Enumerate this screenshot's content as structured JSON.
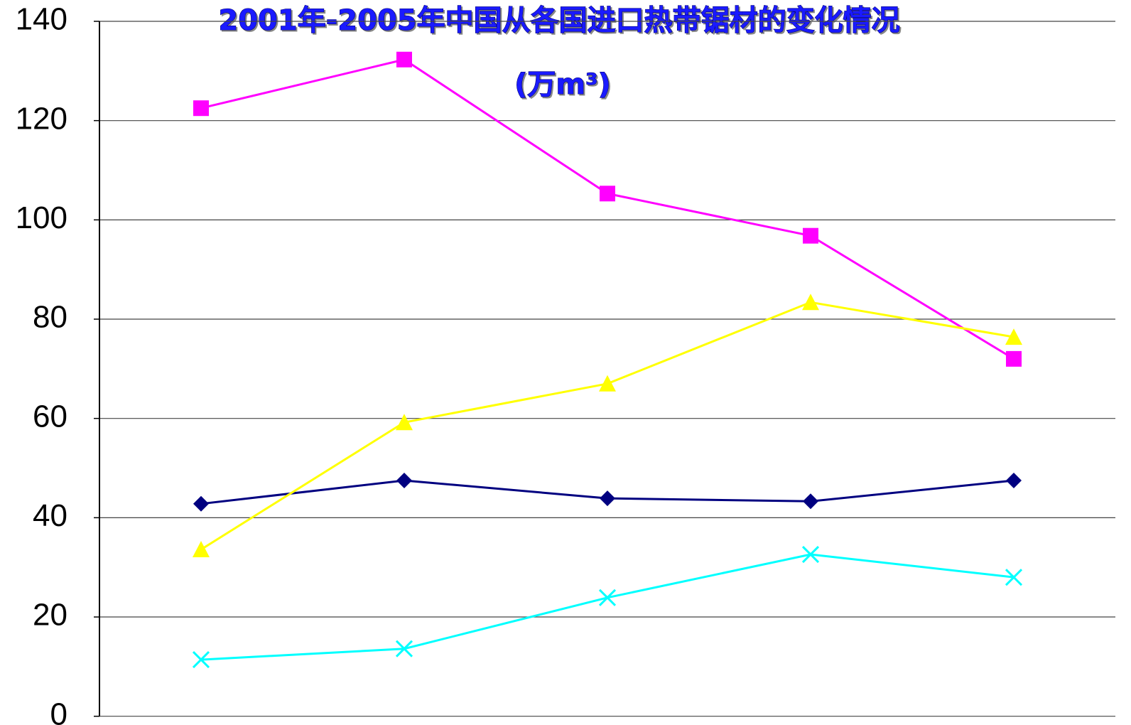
{
  "chart_data": {
    "type": "line",
    "title": "2001年-2005年中国从各国进口热带锯材的变化情况",
    "subtitle": "(万m³)",
    "categories": [
      null,
      null,
      null,
      null,
      null
    ],
    "series": [
      {
        "color": "#000080",
        "marker": "diamond",
        "values": [
          42.8,
          47.5,
          43.9,
          43.3,
          47.5
        ]
      },
      {
        "color": "#ff00ff",
        "marker": "square",
        "values": [
          122.5,
          132.3,
          105.3,
          96.8,
          72.0
        ]
      },
      {
        "color": "#ffff00",
        "marker": "triangle",
        "values": [
          33.6,
          59.2,
          67.0,
          83.4,
          76.4
        ]
      },
      {
        "color": "#00ffff",
        "marker": "x",
        "values": [
          11.4,
          13.6,
          23.9,
          32.6,
          28.0
        ]
      }
    ],
    "ylim": [
      0,
      140
    ],
    "yticks": [
      0,
      20,
      40,
      60,
      80,
      100,
      120,
      140
    ],
    "grid": true
  }
}
